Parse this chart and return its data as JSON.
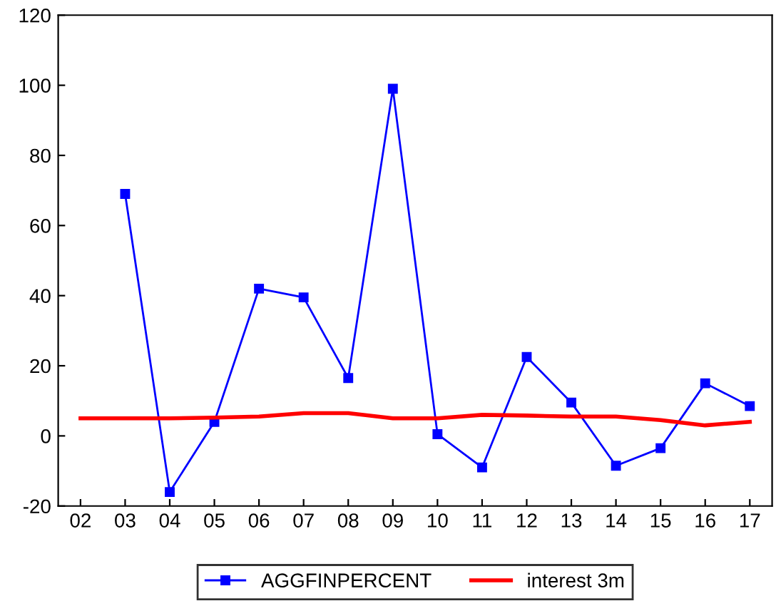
{
  "chart_data": {
    "type": "line",
    "categories": [
      "02",
      "03",
      "04",
      "05",
      "06",
      "07",
      "08",
      "09",
      "10",
      "11",
      "12",
      "13",
      "14",
      "15",
      "16",
      "17"
    ],
    "series": [
      {
        "name": "AGGFINPERCENT",
        "color": "#0000ff",
        "marker": "square",
        "values": [
          null,
          69,
          -16,
          4,
          42,
          39.5,
          16.5,
          99,
          0.5,
          -9,
          22.5,
          9.5,
          -8.5,
          -3.5,
          15,
          8.5
        ]
      },
      {
        "name": "interest 3m",
        "color": "#ff0000",
        "marker": "none",
        "values": [
          5,
          5,
          5,
          5.2,
          5.5,
          6.5,
          6.5,
          5,
          5,
          6,
          5.8,
          5.5,
          5.5,
          4.5,
          3,
          4
        ]
      }
    ],
    "ylim": [
      -20,
      120
    ],
    "yticks": [
      -20,
      0,
      20,
      40,
      60,
      80,
      100,
      120
    ],
    "grid": false,
    "legend": "bottom",
    "line_style": "solid"
  }
}
